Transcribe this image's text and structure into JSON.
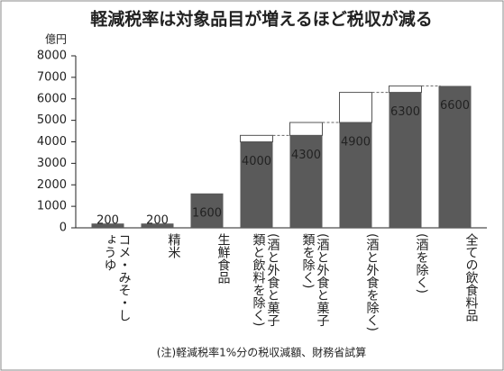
{
  "chart_data": {
    "type": "bar",
    "title": "軽減税率は対象品目が増えるほど税収が減る",
    "y_unit": "億円",
    "note": "(注)軽減税率1%分の税収減額、財務省試算",
    "categories": [
      "コメ・みそ・しょうゆ",
      "精米",
      "生鮮食品",
      "(酒と外食と菓子類と飲料を除く)",
      "(酒と外食と菓子類を除く)",
      "(酒と外食を除く)",
      "(酒を除く)",
      "全ての飲食料品"
    ],
    "values": [
      200,
      200,
      1600,
      4000,
      4300,
      4900,
      6300,
      6600
    ],
    "color": "#5a5a5a",
    "ylim": [
      0,
      8000
    ],
    "yticks": [
      0,
      1000,
      2000,
      3000,
      4000,
      5000,
      6000,
      7000,
      8000
    ]
  }
}
